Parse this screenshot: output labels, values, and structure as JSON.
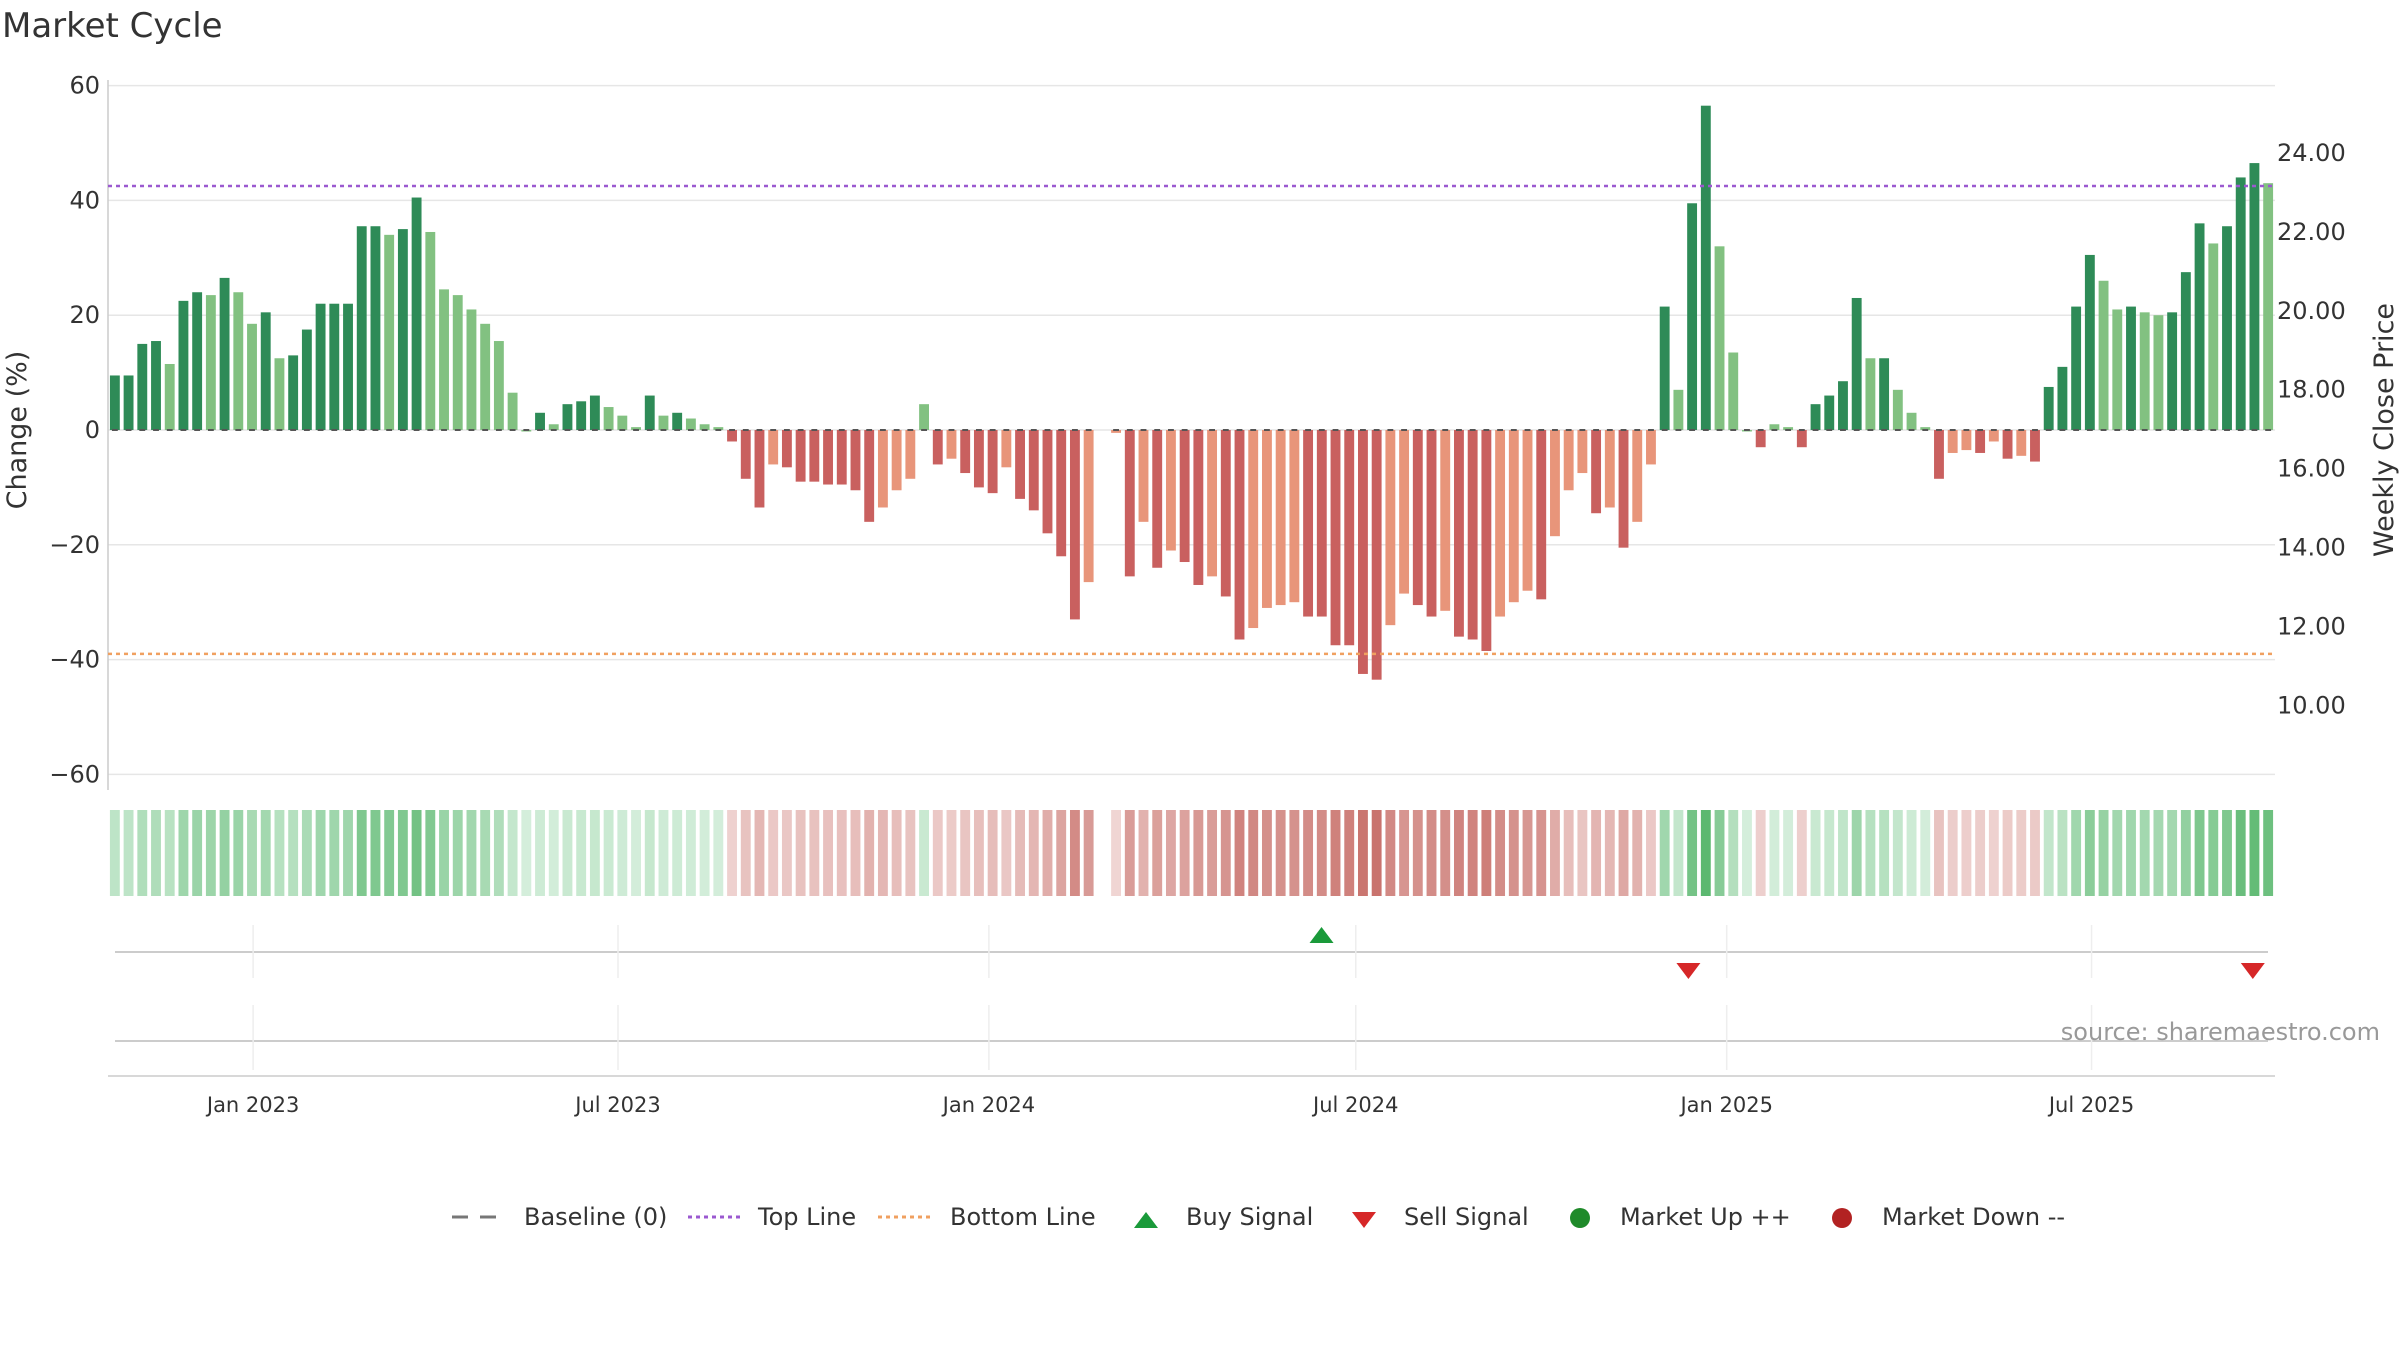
{
  "title": "Market Cycle",
  "source": "source: sharemaestro.com",
  "colors": {
    "up_strong": "#2e8b57",
    "up_light": "#82c181",
    "down_strong": "#c9605f",
    "down_light": "#e8957a",
    "top_line": "#9b59d0",
    "bottom_line": "#f0a060",
    "buy": "#1a9a3a",
    "sell": "#d62728",
    "market_up": "#1f8a2a",
    "market_down": "#b22222"
  },
  "chart_data": {
    "type": "bar",
    "x_type": "time",
    "x_start": "2022-10-21",
    "x_end": "2025-09-30",
    "x_ticks": [
      "Jan 2023",
      "Jul 2023",
      "Jan 2024",
      "Jul 2024",
      "Jan 2025",
      "Jul 2025"
    ],
    "x_tick_dates": [
      "2023-01-01",
      "2023-07-01",
      "2024-01-01",
      "2024-07-01",
      "2025-01-01",
      "2025-07-01"
    ],
    "y_left": {
      "label": "Change (%)",
      "range": [
        -62,
        60
      ],
      "ticks": [
        60,
        40,
        20,
        0,
        -20,
        -40,
        -60
      ],
      "tick_labels": [
        "60",
        "40",
        "20",
        "0",
        "−20",
        "−40",
        "−60"
      ]
    },
    "y_right": {
      "label": "Weekly Close Price",
      "ticks": [
        "24.00",
        "22.00",
        "20.00",
        "18.00",
        "16.00",
        "14.00",
        "12.00",
        "10.00"
      ]
    },
    "top_line": 42.5,
    "bottom_line": -39,
    "baseline": 0,
    "change_values": [
      9.5,
      9.5,
      15,
      15.5,
      11.5,
      22.5,
      24,
      23.5,
      26.5,
      24,
      18.5,
      20.5,
      12.5,
      13,
      17.5,
      22,
      22,
      22,
      35.5,
      35.5,
      34,
      35,
      40.5,
      34.5,
      24.5,
      23.5,
      21,
      18.5,
      15.5,
      6.5,
      0,
      3,
      1,
      4.5,
      5,
      6,
      4,
      2.5,
      0.5,
      6,
      2.5,
      3,
      2,
      1,
      0.5,
      -2,
      -8.5,
      -13.5,
      -6,
      -6.5,
      -9,
      -9,
      -9.5,
      -9.5,
      -10.5,
      -16,
      -13.5,
      -10.5,
      -8.5,
      4.5,
      -6,
      -5,
      -7.5,
      -10,
      -11,
      -6.5,
      -12,
      -14,
      -18,
      -22,
      -33,
      -26.5,
      -0.5,
      -25.5,
      -16,
      -24,
      -21,
      -23,
      -27,
      -25.5,
      -29,
      -36.5,
      -34.5,
      -31,
      -30.5,
      -30,
      -32.5,
      -32.5,
      -37.5,
      -37.5,
      -42.5,
      -43.5,
      -34,
      -28.5,
      -30.5,
      -32.5,
      -31.5,
      -36,
      -36.5,
      -38.5,
      -32.5,
      -30,
      -28,
      -29.5,
      -18.5,
      -10.5,
      -7.5,
      -14.5,
      -13.5,
      -20.5,
      -16,
      -6,
      21.5,
      7,
      39.5,
      56.5,
      32,
      13.5,
      0,
      -3,
      1,
      0.5,
      -3,
      4.5,
      6,
      8.5,
      23,
      12.5,
      12.5,
      7,
      3,
      0.5,
      -8.5,
      -4,
      -3.5,
      -4,
      -2,
      -5,
      -4.5,
      -5.5,
      7.5,
      11,
      21.5,
      30.5,
      26,
      21,
      21.5,
      20.5,
      20,
      20.5,
      27.5,
      36,
      32.5,
      35.5,
      44,
      46.5,
      43
    ],
    "week_slot_gap_index": 72,
    "signals": [
      {
        "type": "buy",
        "date": "2024-06-14"
      },
      {
        "type": "sell",
        "date": "2024-12-13"
      },
      {
        "type": "sell",
        "date": "2025-09-19"
      }
    ],
    "legend": [
      "Baseline (0)",
      "Top Line",
      "Bottom Line",
      "Buy Signal",
      "Sell Signal",
      "Market Up ++",
      "Market Down --"
    ],
    "legend_position": "bottom-center",
    "grid": true
  }
}
